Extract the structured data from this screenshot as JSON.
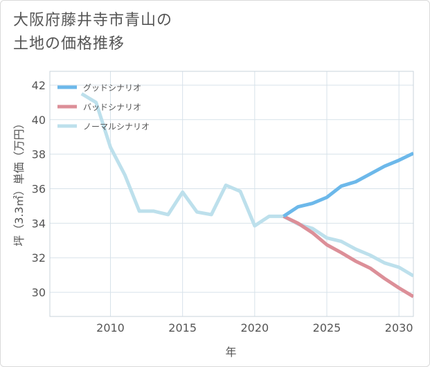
{
  "title": {
    "line1": "大阪府藤井寺市青山の",
    "line2": "土地の価格推移"
  },
  "chart_data": {
    "type": "line",
    "xlabel": "年",
    "ylabel": "坪（3.3㎡）単価（万円）",
    "xlim": [
      2005.8,
      2031
    ],
    "ylim": [
      28.6,
      42.8
    ],
    "x_ticks": [
      2010,
      2015,
      2020,
      2025,
      2030
    ],
    "y_ticks": [
      30,
      32,
      34,
      36,
      38,
      40,
      42
    ],
    "x_tick_labels": [
      "2010",
      "2015",
      "2020",
      "2025",
      "2030"
    ],
    "y_tick_labels": [
      "30",
      "32",
      "34",
      "36",
      "38",
      "40",
      "42"
    ],
    "grid": true,
    "legend_position": "top-left",
    "series": [
      {
        "name": "グッドシナリオ",
        "color": "#6cb8ea",
        "x": [
          2022,
          2023,
          2024,
          2025,
          2026,
          2027,
          2028,
          2029,
          2030,
          2031
        ],
        "y": [
          34.4,
          34.95,
          35.15,
          35.5,
          36.15,
          36.4,
          36.85,
          37.3,
          37.65,
          38.05
        ]
      },
      {
        "name": "バッドシナリオ",
        "color": "#dc8f98",
        "x": [
          2022,
          2023,
          2024,
          2025,
          2026,
          2027,
          2028,
          2029,
          2030,
          2031
        ],
        "y": [
          34.4,
          34.0,
          33.45,
          32.75,
          32.3,
          31.8,
          31.4,
          30.8,
          30.25,
          29.75
        ]
      },
      {
        "name": "ノーマルシナリオ",
        "color": "#bde0ec",
        "x": [
          2008,
          2009,
          2010,
          2011,
          2012,
          2013,
          2014,
          2015,
          2016,
          2017,
          2018,
          2019,
          2020,
          2021,
          2022,
          2023,
          2024,
          2025,
          2026,
          2027,
          2028,
          2029,
          2030,
          2031
        ],
        "y": [
          41.5,
          41.0,
          38.4,
          36.8,
          34.7,
          34.7,
          34.5,
          35.8,
          34.65,
          34.5,
          36.2,
          35.85,
          33.85,
          34.4,
          34.4,
          33.95,
          33.7,
          33.15,
          32.95,
          32.5,
          32.15,
          31.7,
          31.45,
          30.95
        ]
      }
    ]
  }
}
